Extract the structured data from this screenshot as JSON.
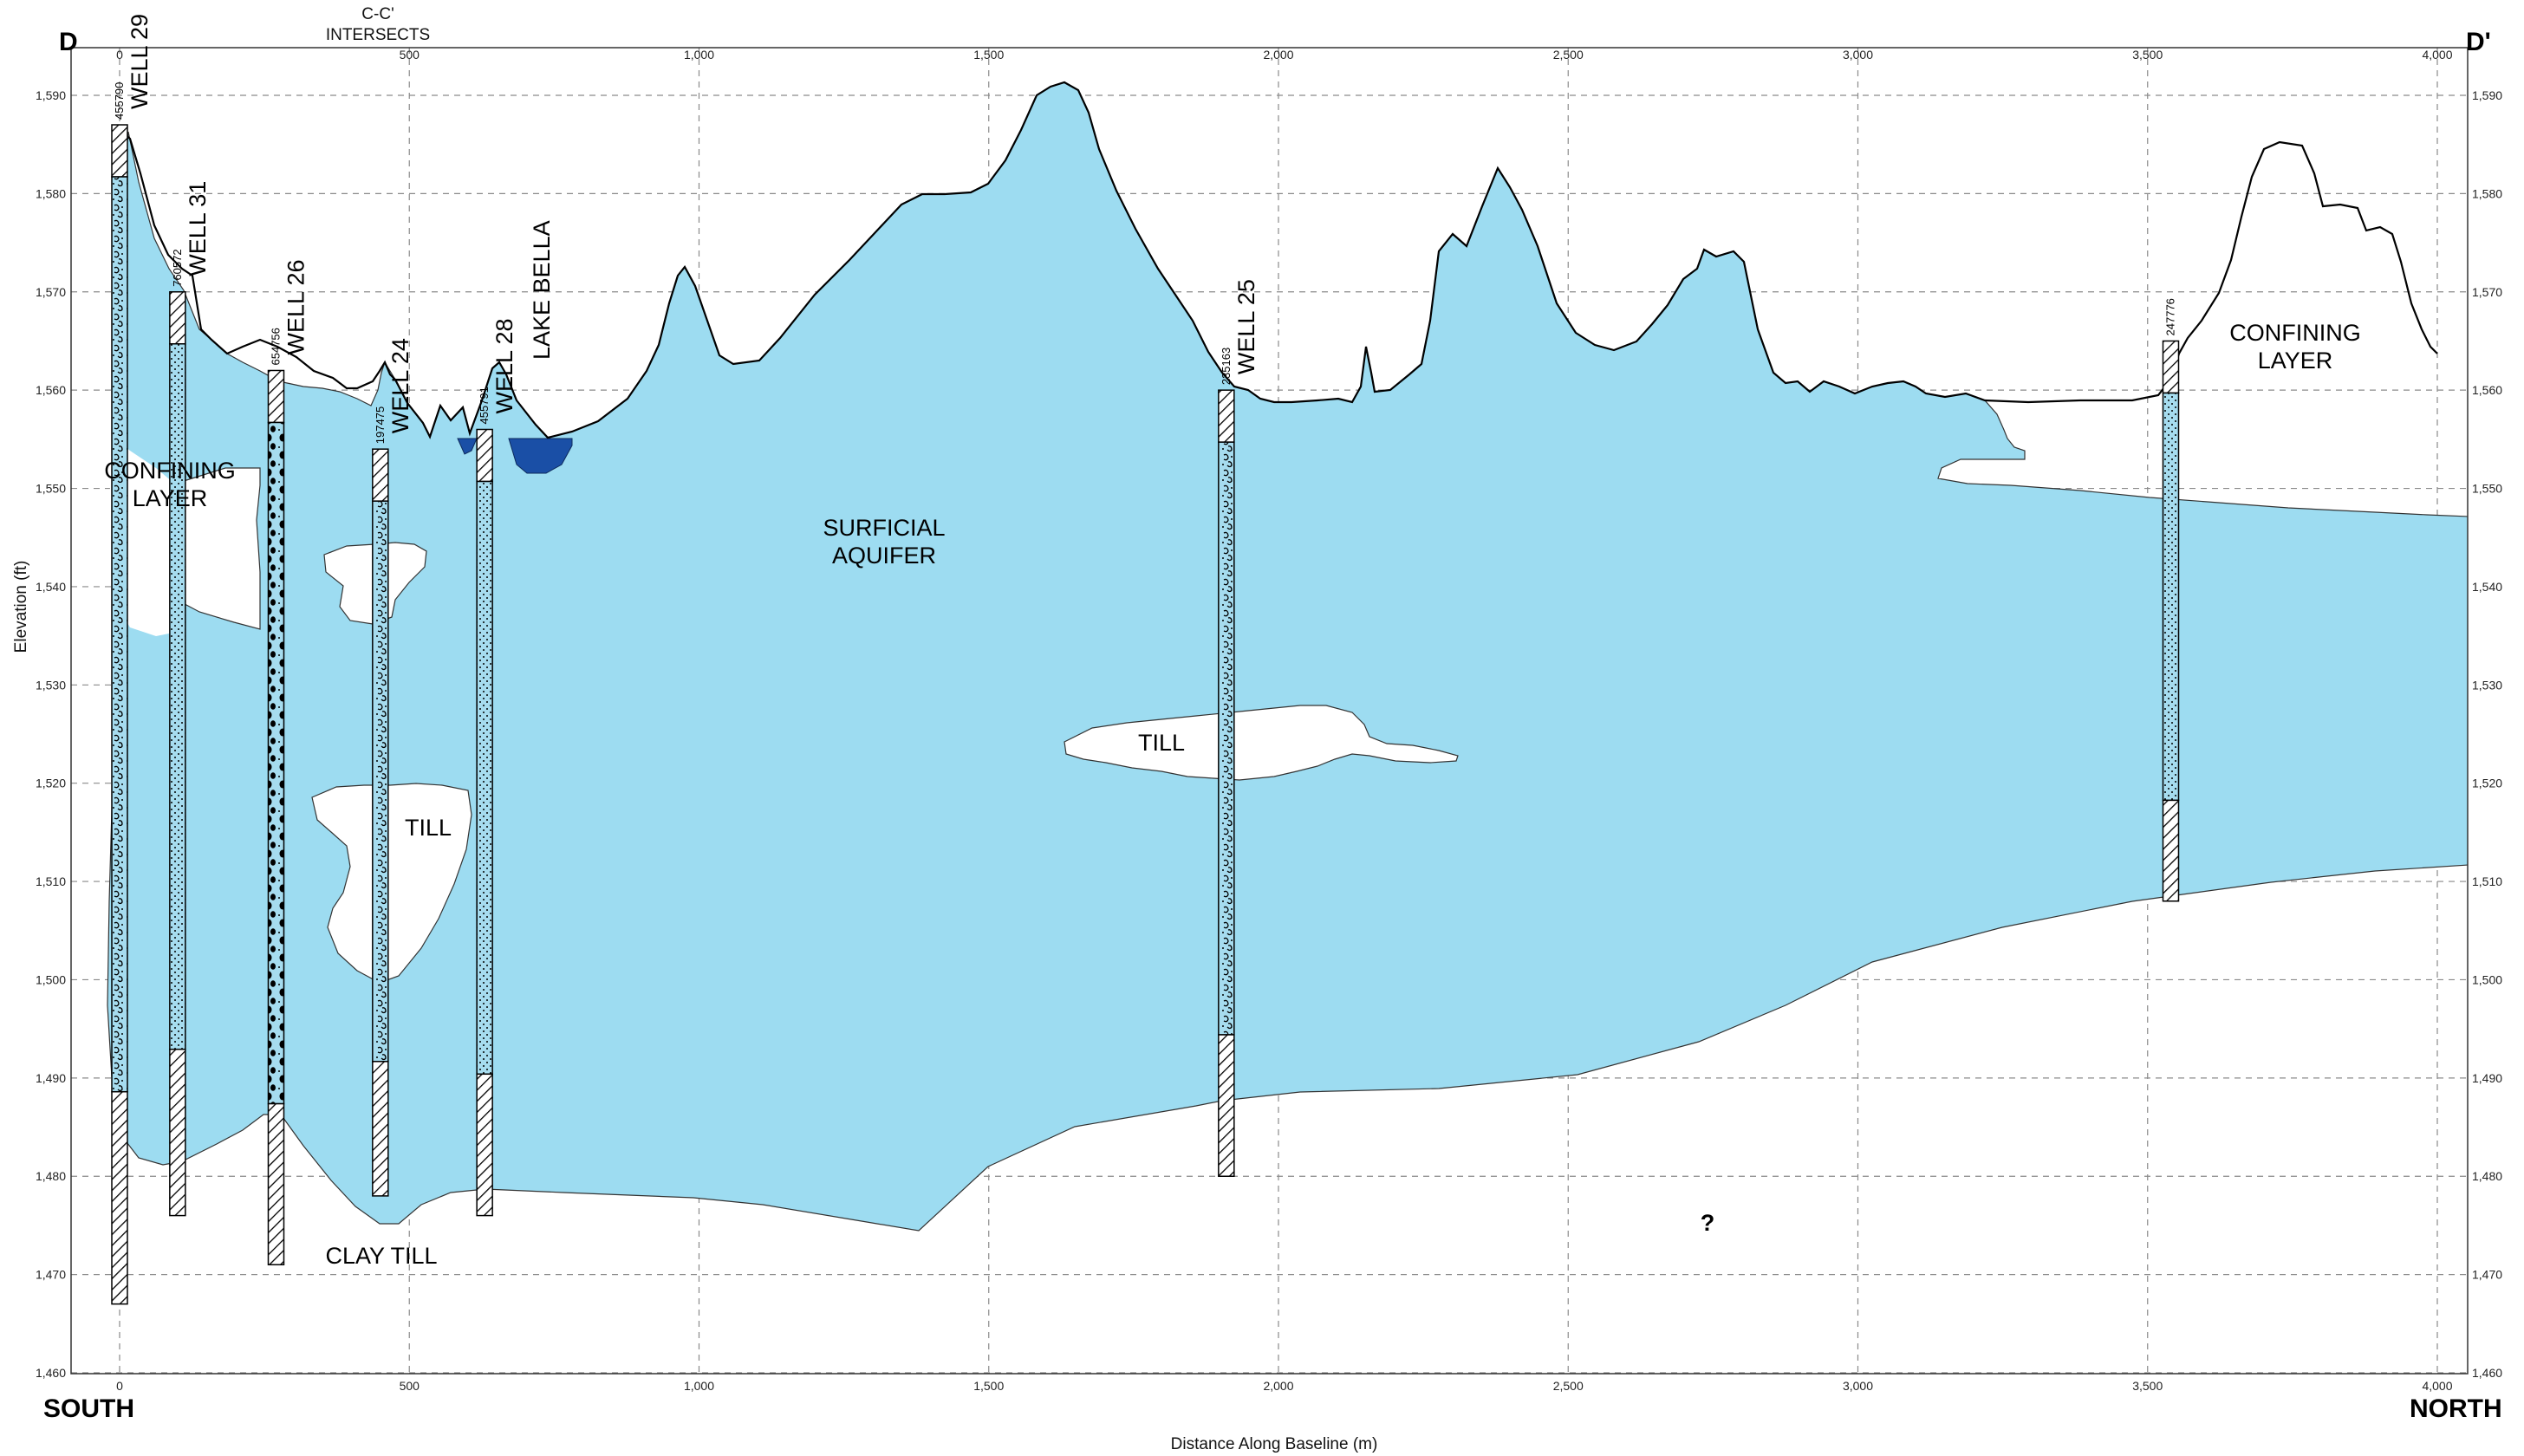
{
  "corners": {
    "top_left": "D",
    "top_right": "D'",
    "bottom_left": "SOUTH",
    "bottom_right": "NORTH"
  },
  "intersect_label": [
    "C-C'",
    "INTERSECTS"
  ],
  "axes": {
    "xlabel": "Distance Along Baseline (m)",
    "ylabel": "Elevation (ft)",
    "x_ticks": [
      "0",
      "500",
      "1,000",
      "1,500",
      "2,000",
      "2,500",
      "3,000",
      "3,500",
      "4,000"
    ],
    "y_ticks": [
      "1,460",
      "1,470",
      "1,480",
      "1,490",
      "1,500",
      "1,510",
      "1,520",
      "1,530",
      "1,540",
      "1,550",
      "1,560",
      "1,570",
      "1,580",
      "1,590"
    ],
    "xlim": [
      0,
      4000
    ],
    "ylim": [
      1460,
      1595
    ],
    "grid": true
  },
  "units": [
    "TILL",
    "TILL",
    "TILL",
    "CLAY TILL",
    "?"
  ],
  "unit_labels_multi": {
    "surficial": [
      "SURFICIAL",
      "AQUIFER"
    ],
    "confining_south": [
      "CONFINING",
      "LAYER"
    ],
    "confining_north": [
      "CONFINING",
      "LAYER"
    ]
  },
  "lake_label": "LAKE BELLA",
  "wells": [
    {
      "name": "WELL 29",
      "id": "455790",
      "x": 0,
      "top": 1587,
      "bottom": 1467
    },
    {
      "name": "WELL 31",
      "id": "760572",
      "x": 100,
      "top": 1570,
      "bottom": 1476
    },
    {
      "name": "WELL 26",
      "id": "654756",
      "x": 270,
      "top": 1562,
      "bottom": 1471
    },
    {
      "name": "WELL 24",
      "id": "197475",
      "x": 450,
      "top": 1554,
      "bottom": 1478
    },
    {
      "name": "WELL 28",
      "id": "455791",
      "x": 630,
      "top": 1556,
      "bottom": 1476
    },
    {
      "name": "WELL 25",
      "id": "235163",
      "x": 1910,
      "top": 1560,
      "bottom": 1480
    },
    {
      "name": "",
      "id": "247776",
      "x": 3540,
      "top": 1565,
      "bottom": 1508
    }
  ],
  "colors": {
    "aquifer": "#9ddcf1",
    "lake": "#1a4fa6",
    "outline": "#000000"
  }
}
